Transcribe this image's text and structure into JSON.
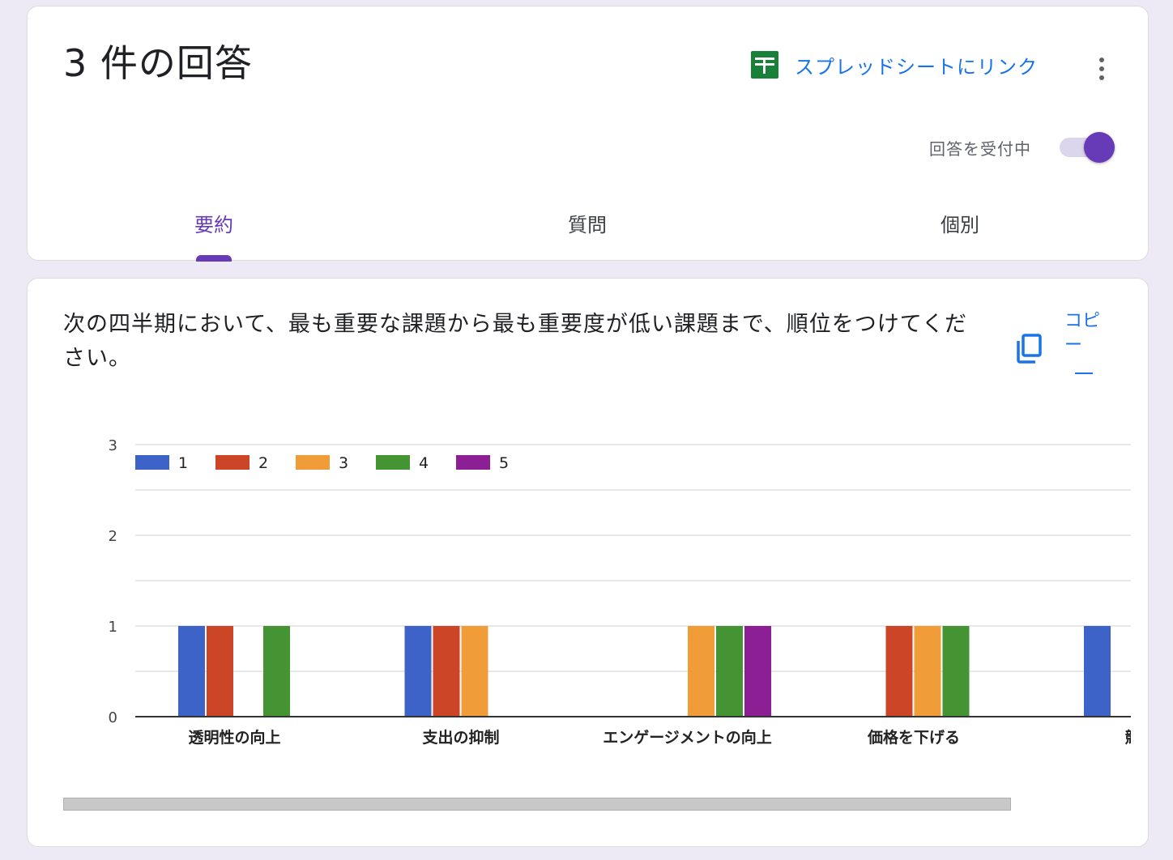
{
  "header": {
    "title": "3 件の回答",
    "sheets_link_label": "スプレッドシートにリンク",
    "accepting_label": "回答を受付中",
    "accepting_on": true
  },
  "tabs": [
    {
      "label": "要約",
      "active": true
    },
    {
      "label": "質問",
      "active": false
    },
    {
      "label": "個別",
      "active": false
    }
  ],
  "question": {
    "text": "次の四半期において、最も重要な課題から最も重要度が低い課題まで、順位をつけてください。",
    "copy_label": "コピー"
  },
  "colors": {
    "accent": "#673ab7",
    "link": "#1a73e8",
    "sheets_green": "#188038"
  },
  "chart_data": {
    "type": "bar",
    "ylim": [
      0,
      3
    ],
    "yticks": [
      0,
      1,
      2,
      3
    ],
    "grid": true,
    "legend_position": "top-left",
    "categories": [
      "透明性の向上",
      "支出の抑制",
      "エンゲージメントの向上",
      "価格を下げる",
      "競争"
    ],
    "series": [
      {
        "name": "1",
        "color": "#3d63c9",
        "values": [
          1,
          1,
          0,
          0,
          1
        ]
      },
      {
        "name": "2",
        "color": "#cc4527",
        "values": [
          1,
          1,
          0,
          1,
          0
        ]
      },
      {
        "name": "3",
        "color": "#f09c38",
        "values": [
          0,
          1,
          1,
          1,
          0
        ]
      },
      {
        "name": "4",
        "color": "#449434",
        "values": [
          1,
          0,
          1,
          1,
          0
        ]
      },
      {
        "name": "5",
        "color": "#8c1f94",
        "values": [
          0,
          0,
          1,
          0,
          0
        ]
      }
    ]
  }
}
